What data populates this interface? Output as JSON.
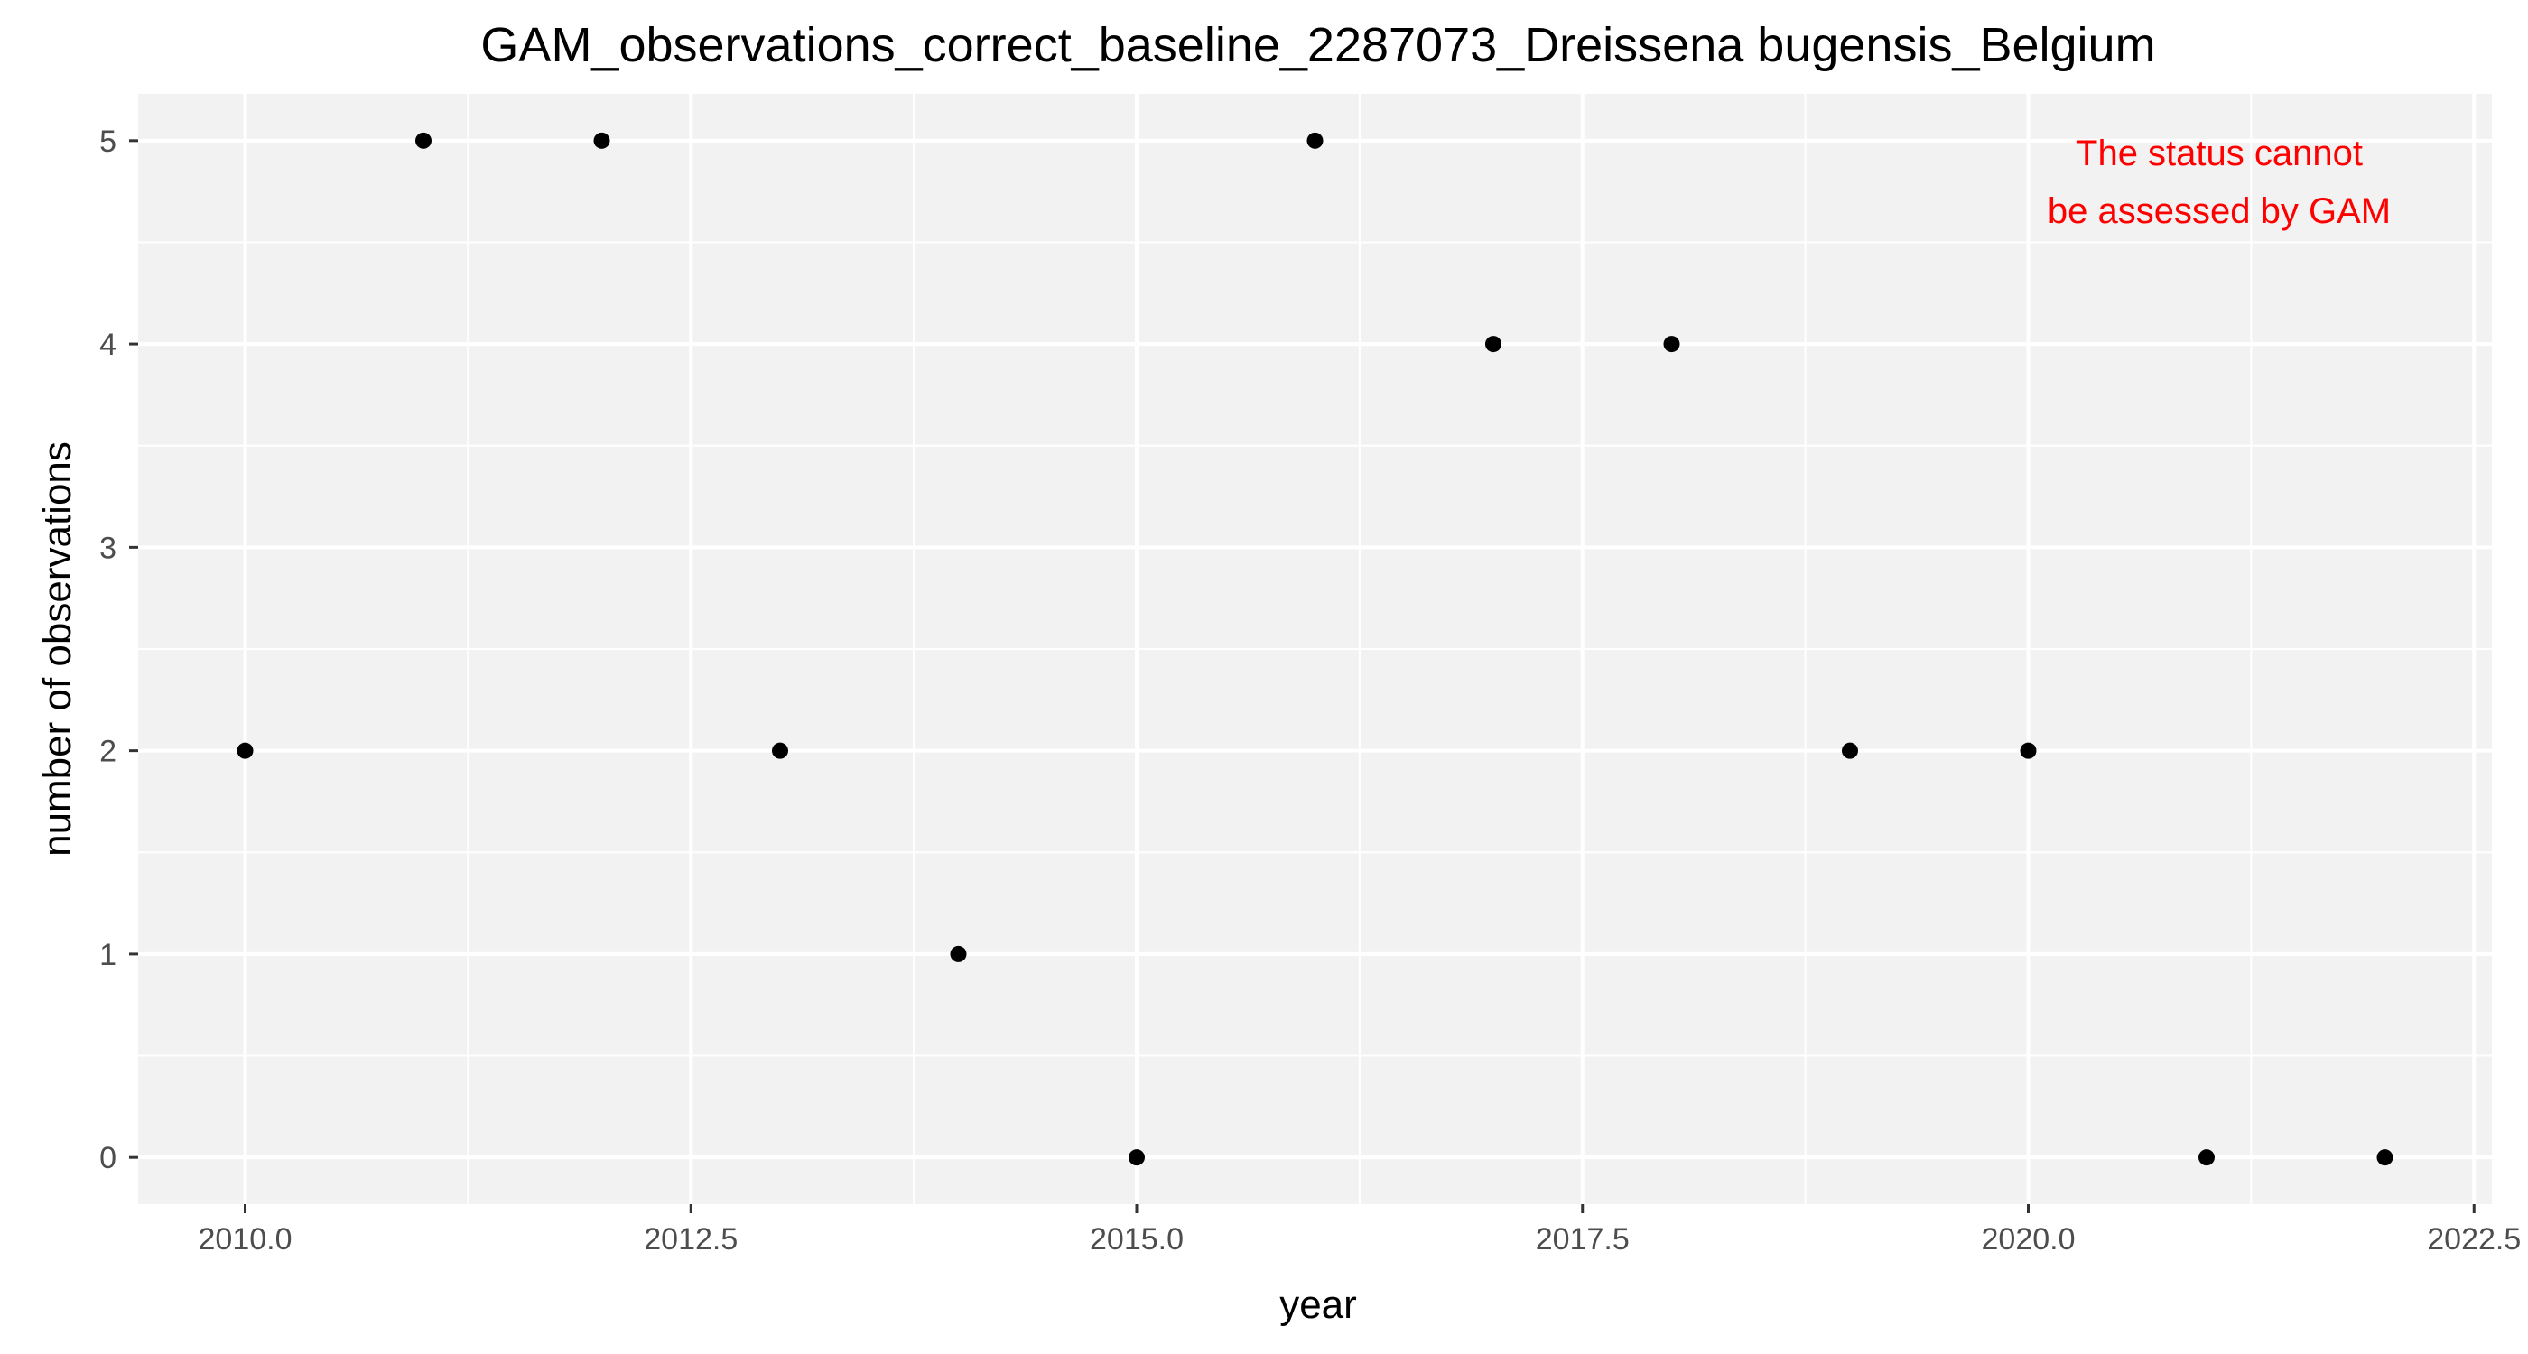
{
  "chart_data": {
    "type": "scatter",
    "title": "GAM_observations_correct_baseline_2287073_Dreissena bugensis_Belgium",
    "xlabel": "year",
    "ylabel": "number of observations",
    "xlim": [
      2009.4,
      2022.6
    ],
    "ylim": [
      -0.23,
      5.23
    ],
    "x_ticks": [
      2010.0,
      2012.5,
      2015.0,
      2017.5,
      2020.0,
      2022.5
    ],
    "x_tick_labels": [
      "2010.0",
      "2012.5",
      "2015.0",
      "2017.5",
      "2020.0",
      "2022.5"
    ],
    "y_ticks": [
      0,
      1,
      2,
      3,
      4,
      5
    ],
    "y_tick_labels": [
      "0",
      "1",
      "2",
      "3",
      "4",
      "5"
    ],
    "grid": true,
    "series": [
      {
        "x": [
          2010,
          2011,
          2012,
          2013,
          2014,
          2015,
          2016,
          2017,
          2018,
          2019,
          2020,
          2021,
          2022
        ],
        "y": [
          2,
          5,
          5,
          2,
          1,
          0,
          5,
          4,
          4,
          2,
          2,
          0,
          0
        ]
      }
    ],
    "annotation": {
      "lines": [
        "The status cannot",
        "be assessed by GAM"
      ],
      "x": 2021,
      "y": 4.8,
      "color": "#ff0000"
    },
    "colors": {
      "panel_background": "#f2f2f2",
      "grid_major": "#ffffff",
      "grid_minor": "#ffffff",
      "point": "#000000",
      "tick_label": "#4d4d4d",
      "axis_text": "#000000"
    }
  }
}
